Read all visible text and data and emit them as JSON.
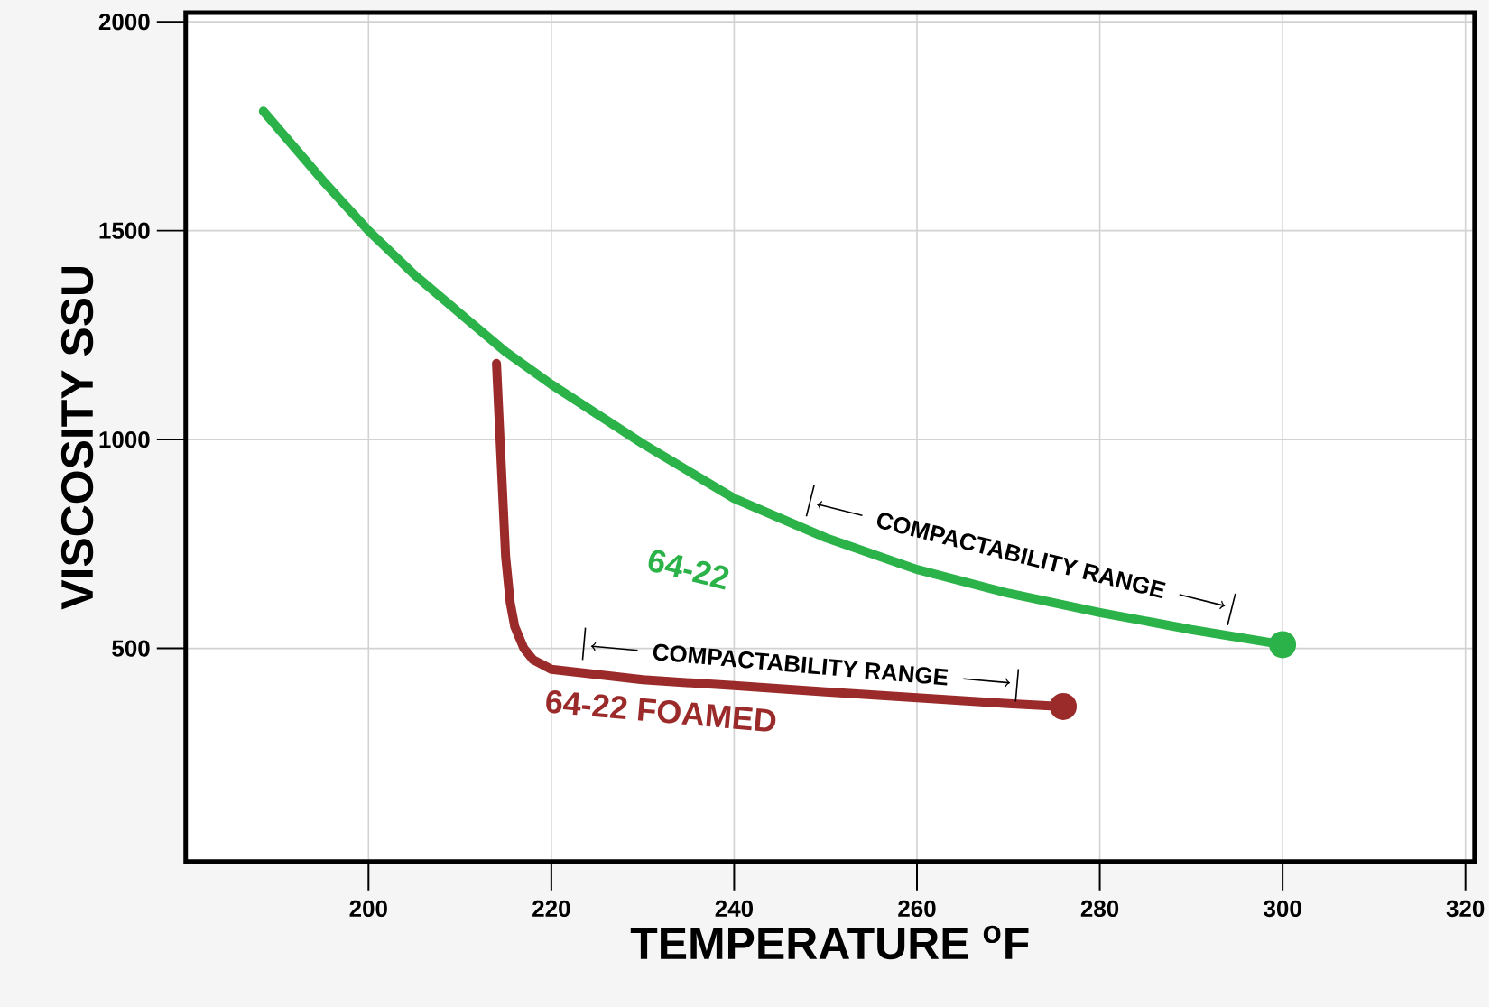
{
  "chart_data": {
    "type": "line",
    "xlabel": "TEMPERATURE $^{o}$F",
    "ylabel": "VISCOSITY SSU",
    "xlim": [
      180,
      321
    ],
    "ylim": [
      -10,
      2022
    ],
    "xticks": [
      200,
      220,
      240,
      260,
      280,
      300,
      320
    ],
    "yticks": [
      500,
      1000,
      1500,
      2000
    ],
    "grid": true,
    "series": [
      {
        "name": "64-22",
        "color": "#2bb34a",
        "x": [
          188.5,
          195,
          200,
          205,
          210,
          215,
          220,
          230,
          240,
          250,
          260,
          270,
          280,
          290,
          300
        ],
        "values": [
          1786,
          1620,
          1500,
          1395,
          1302,
          1210,
          1132,
          990,
          859,
          765,
          689,
          632,
          586,
          545,
          509
        ]
      },
      {
        "name": "64-22 FOAMED",
        "color": "#9b2b2b",
        "x": [
          214,
          214.5,
          215,
          215.5,
          216,
          217,
          218,
          220,
          230,
          240,
          250,
          260,
          270,
          276
        ],
        "values": [
          1182,
          950,
          720,
          610,
          552,
          500,
          473,
          450,
          425,
          411,
          396,
          382,
          368,
          361
        ]
      }
    ],
    "annotations": [
      "COMPACTABILITY RANGE",
      "COMPACTABILITY RANGE"
    ]
  }
}
